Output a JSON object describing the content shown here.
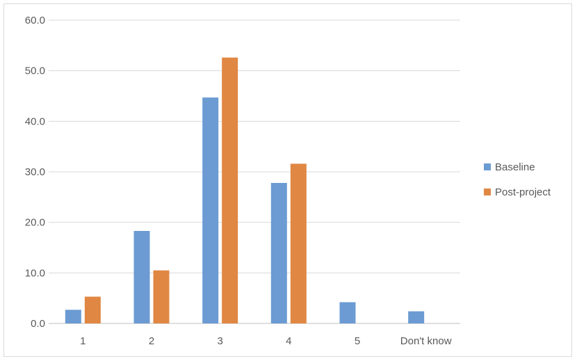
{
  "chart_data": {
    "type": "bar",
    "categories": [
      "1",
      "2",
      "3",
      "4",
      "5",
      "Don't know"
    ],
    "series": [
      {
        "name": "Baseline",
        "color": "#6b9bd2",
        "values": [
          2.7,
          18.3,
          44.7,
          27.8,
          4.2,
          2.4
        ]
      },
      {
        "name": "Post-project",
        "color": "#e08744",
        "values": [
          5.3,
          10.5,
          52.6,
          31.6,
          0.0,
          0.0
        ]
      }
    ],
    "ylim": [
      0,
      60
    ],
    "yticks": [
      "0.0",
      "10.0",
      "20.0",
      "30.0",
      "40.0",
      "50.0",
      "60.0"
    ],
    "grid": true,
    "legend_position": "right"
  }
}
